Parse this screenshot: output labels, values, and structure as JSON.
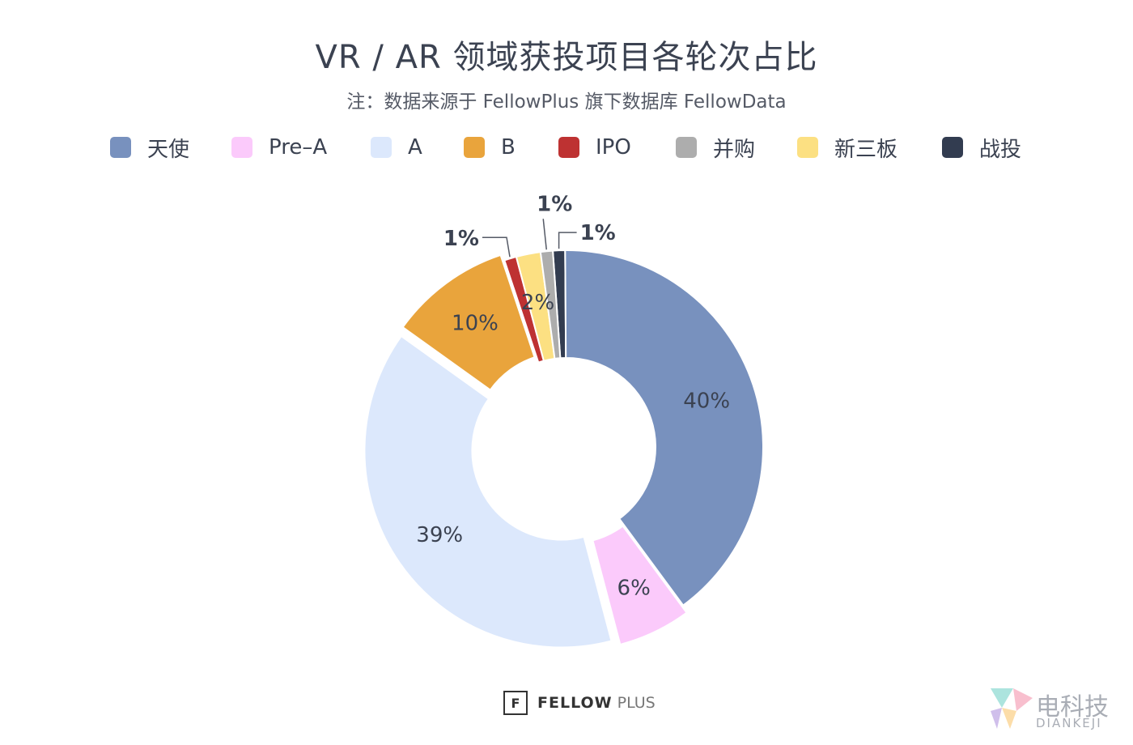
{
  "chart_data": {
    "type": "pie",
    "title": "VR / AR 领域获投项目各轮次占比",
    "subtitle": "注：数据来源于 FellowPlus 旗下数据库 FellowData",
    "legend_position": "top",
    "donut": true,
    "slices": [
      {
        "name": "战投",
        "value": 1,
        "label": "1%",
        "color": "#323c50"
      },
      {
        "name": "天使",
        "value": 40,
        "label": "40%",
        "color": "#7891be"
      },
      {
        "name": "Pre-A",
        "value": 6,
        "label": "6%",
        "color": "#fbcafb"
      },
      {
        "name": "A",
        "value": 39,
        "label": "39%",
        "color": "#dce8fc"
      },
      {
        "name": "B",
        "value": 10,
        "label": "10%",
        "color": "#e9a43c"
      },
      {
        "name": "IPO",
        "value": 1,
        "label": "1%",
        "color": "#be3232"
      },
      {
        "name": "新三板",
        "value": 2,
        "label": "2%",
        "color": "#fce082"
      },
      {
        "name": "并购",
        "value": 1,
        "label": "1%",
        "color": "#adadad"
      }
    ],
    "legend": [
      {
        "name": "天使",
        "color": "#7891be"
      },
      {
        "name": "Pre–A",
        "color": "#fbcafb"
      },
      {
        "name": "A",
        "color": "#dce8fc"
      },
      {
        "name": "B",
        "color": "#e9a43c"
      },
      {
        "name": "IPO",
        "color": "#be3232"
      },
      {
        "name": "并购",
        "color": "#adadad"
      },
      {
        "name": "新三板",
        "color": "#fce082"
      },
      {
        "name": "战投",
        "color": "#323c50"
      }
    ]
  },
  "footer": {
    "logo_glyph": "F",
    "brand_bold": "FELLOW",
    "brand_light": "PLUS"
  },
  "watermark": {
    "cn": "电科技",
    "en": "DIANKEJI"
  }
}
